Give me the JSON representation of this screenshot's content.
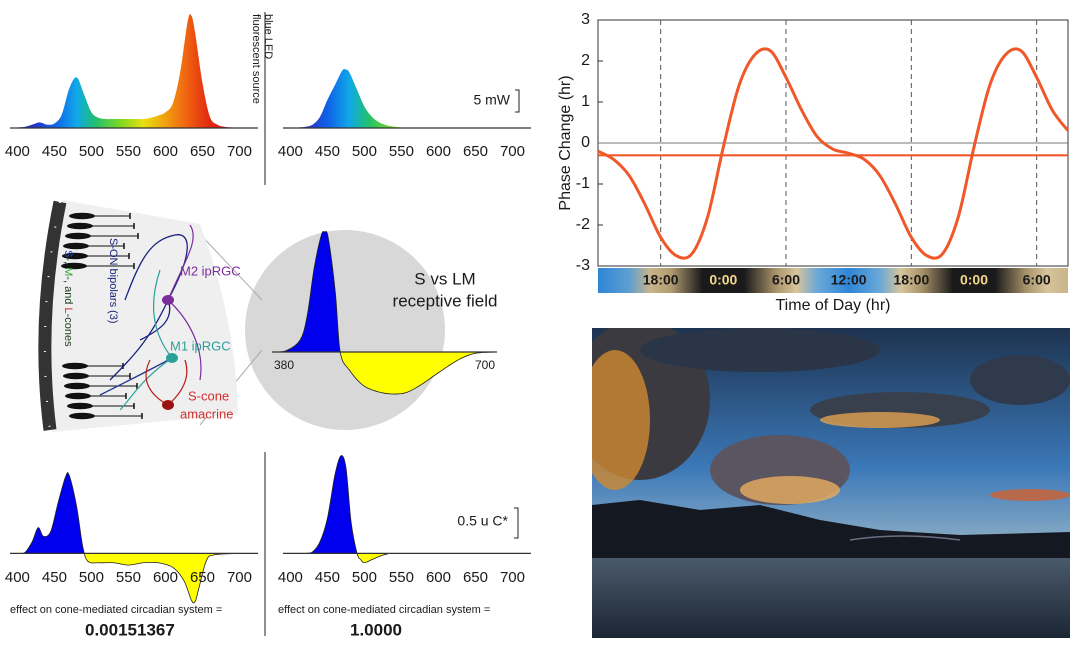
{
  "chart_data": [
    {
      "type": "area",
      "fill": "spectrum",
      "label": "fluorescent source",
      "x": [
        390,
        400,
        410,
        420,
        430,
        440,
        450,
        460,
        470,
        480,
        490,
        500,
        510,
        520,
        530,
        540,
        550,
        560,
        570,
        580,
        590,
        600,
        610,
        620,
        630,
        635,
        640,
        650,
        660,
        670,
        680,
        690,
        700
      ],
      "values": [
        0,
        0.5,
        1,
        3,
        5,
        3,
        4,
        12,
        35,
        45,
        30,
        14,
        9,
        8,
        8,
        8,
        8,
        8,
        8,
        9,
        11,
        14,
        22,
        50,
        95,
        100,
        85,
        40,
        10,
        3,
        1,
        0.5,
        0
      ],
      "xlim": [
        390,
        725
      ],
      "ylim": [
        0,
        105
      ],
      "xticks": [
        400,
        450,
        500,
        550,
        600,
        650,
        700
      ]
    },
    {
      "type": "area",
      "fill": "spectrum",
      "label": "blue LED",
      "scale_label": "5 mW",
      "x": [
        390,
        400,
        410,
        420,
        430,
        440,
        450,
        460,
        470,
        475,
        480,
        490,
        500,
        510,
        520,
        530,
        540,
        550,
        560,
        700
      ],
      "values": [
        0,
        0,
        0.5,
        1,
        3,
        10,
        25,
        38,
        51,
        52,
        49,
        34,
        19,
        10,
        5,
        2.5,
        1.2,
        0.4,
        0,
        0
      ],
      "xlim": [
        390,
        725
      ],
      "ylim": [
        0,
        105
      ],
      "xticks": [
        400,
        450,
        500,
        550,
        600,
        650,
        700
      ]
    },
    {
      "type": "area",
      "fill": "signed",
      "pos_color": "#0000ee",
      "neg_color": "#ffff00",
      "title": [
        "S vs LM",
        "receptive field"
      ],
      "x": [
        380,
        400,
        420,
        430,
        440,
        450,
        455,
        460,
        470,
        477,
        490,
        510,
        530,
        550,
        570,
        590,
        610,
        630,
        650,
        670,
        700
      ],
      "values": [
        0,
        1,
        10,
        30,
        70,
        97,
        100,
        95,
        50,
        0,
        -15,
        -28,
        -33,
        -35,
        -34,
        -28,
        -20,
        -12,
        -5,
        -1,
        0
      ],
      "xlim": [
        380,
        700
      ],
      "ylim": [
        -40,
        100
      ],
      "xticks": [
        380,
        700
      ]
    },
    {
      "type": "area",
      "fill": "signed",
      "pos_color": "#0000ee",
      "neg_color": "#ffff00",
      "caption": "effect on cone-mediated circadian system =",
      "result": "0.00151367",
      "x": [
        400,
        410,
        420,
        428,
        435,
        445,
        455,
        465,
        470,
        480,
        488,
        495,
        510,
        530,
        550,
        570,
        590,
        610,
        625,
        635,
        640,
        645,
        655,
        665,
        700
      ],
      "values": [
        0,
        1,
        15,
        33,
        22,
        28,
        65,
        98,
        100,
        60,
        10,
        -10,
        -12,
        -12,
        -15,
        -12,
        -12,
        -18,
        -35,
        -60,
        -62,
        -45,
        -10,
        -2,
        0
      ],
      "xlim": [
        390,
        725
      ],
      "ylim": [
        -70,
        130
      ],
      "xticks": [
        400,
        450,
        500,
        550,
        600,
        650,
        700
      ]
    },
    {
      "type": "area",
      "fill": "signed",
      "pos_color": "#0000ee",
      "neg_color": "#ffff00",
      "scale_label": "0.5 u C*",
      "caption": "effect on cone-mediated circadian system =",
      "result": "1.0000",
      "x": [
        400,
        420,
        430,
        440,
        450,
        460,
        468,
        475,
        482,
        490,
        495,
        500,
        510,
        520,
        530,
        550,
        700
      ],
      "values": [
        0,
        0,
        2,
        15,
        45,
        100,
        125,
        110,
        40,
        0,
        -8,
        -12,
        -8,
        -4,
        -1,
        0,
        0
      ],
      "xlim": [
        390,
        725
      ],
      "ylim": [
        -70,
        130
      ],
      "xticks": [
        400,
        450,
        500,
        550,
        600,
        650,
        700
      ]
    },
    {
      "type": "line",
      "ylabel": "Phase Change (hr)",
      "xlabel": "Time of Day (hr)",
      "x": [
        12,
        13.5,
        15,
        16.5,
        18,
        19.5,
        21,
        22.5,
        24,
        25.5,
        27,
        28.5,
        30,
        31.5,
        33,
        34.5,
        36,
        37.5,
        39,
        40.5,
        42,
        43.5,
        45,
        46.5,
        48,
        49.5,
        51,
        52.5,
        54,
        55.5,
        57
      ],
      "series": [
        {
          "color": "#f0582a",
          "values": [
            -0.2,
            -0.4,
            -0.8,
            -1.5,
            -2.3,
            -2.75,
            -2.7,
            -1.8,
            -0.1,
            1.4,
            2.15,
            2.25,
            1.6,
            0.8,
            0.15,
            -0.15,
            -0.25,
            -0.4,
            -0.8,
            -1.5,
            -2.3,
            -2.75,
            -2.7,
            -1.8,
            -0.1,
            1.4,
            2.15,
            2.25,
            1.6,
            0.8,
            0.3
          ]
        },
        {
          "color": "#f0582a",
          "x": [
            12,
            57
          ],
          "values": [
            -0.3,
            -0.3
          ]
        }
      ],
      "xlim": [
        12,
        57
      ],
      "ylim": [
        -3,
        3
      ],
      "yticks": [
        -3,
        -2,
        -1,
        0,
        1,
        2,
        3
      ],
      "xticks": [
        {
          "value": 18,
          "label": "18:00"
        },
        {
          "value": 24,
          "label": "0:00"
        },
        {
          "value": 30,
          "label": "6:00"
        },
        {
          "value": 36,
          "label": "12:00"
        },
        {
          "value": 42,
          "label": "18:00"
        },
        {
          "value": 48,
          "label": "0:00"
        },
        {
          "value": 54,
          "label": "6:00"
        }
      ],
      "xtick_colors": [
        "#1a1a1a",
        "#f5d58a",
        "#1a1a1a",
        "#1a1a1a",
        "#1a1a1a",
        "#f5d58a",
        "#1a1a1a"
      ],
      "reference_line": 0,
      "dashed_lines_at": [
        18,
        30,
        42,
        54
      ]
    }
  ],
  "diagram": {
    "m2": "M2 ipRGC",
    "m1": "M1 ipRGC",
    "amacrine": [
      "S-cone",
      "amacrine"
    ],
    "bipolars": "S-ON bipolars (3)",
    "cones": [
      "S",
      "-, ",
      "M",
      "-, and ",
      "L",
      "-cones"
    ]
  }
}
